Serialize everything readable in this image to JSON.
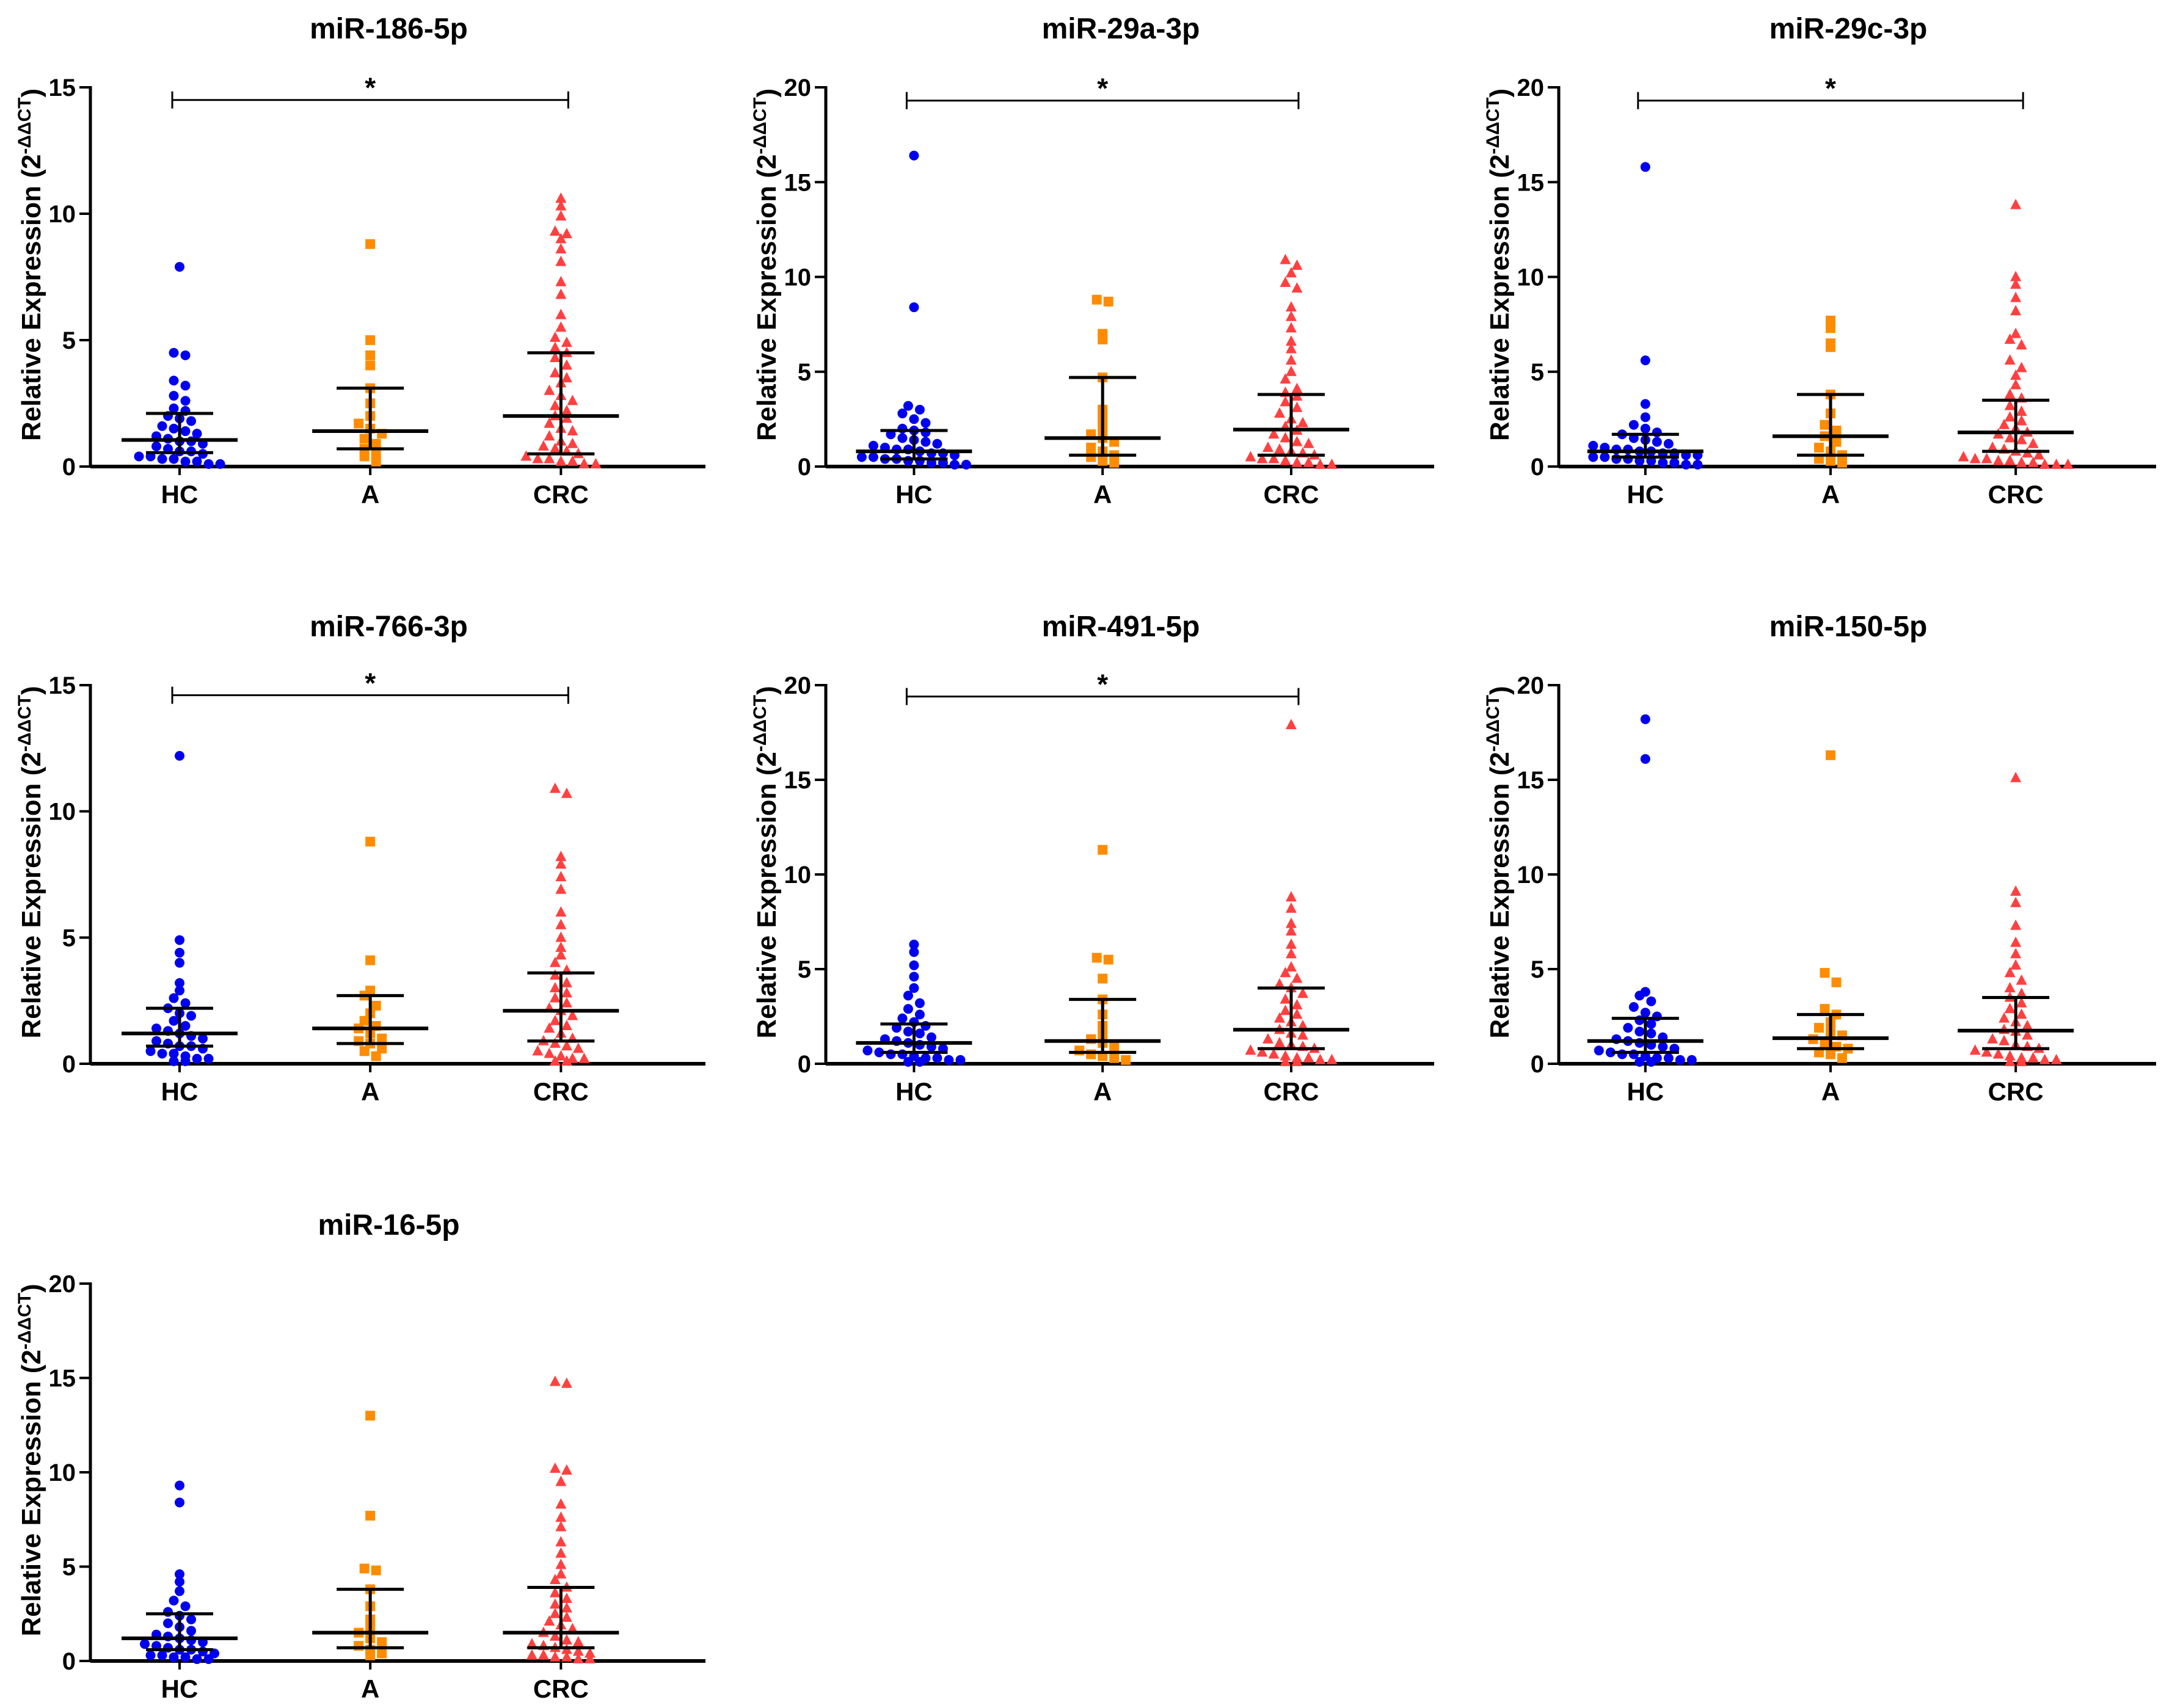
{
  "colors": {
    "HC": "#0000ee",
    "A": "#ff8c00",
    "CRC": "#ff4040",
    "axis": "#000000"
  },
  "marker_icons": {
    "HC": "circle-icon",
    "A": "square-icon",
    "CRC": "triangle-icon"
  },
  "ylabel_main": "Relative Expression (2",
  "ylabel_sup": "-ΔΔCT",
  "ylabel_close": ")",
  "chart_data": [
    {
      "type": "scatter",
      "title": "miR-186-5p",
      "categories": [
        "HC",
        "A",
        "CRC"
      ],
      "ylim": [
        0,
        15
      ],
      "yticks": [
        0,
        5,
        10,
        15
      ],
      "ylabel": "Relative Expression (2-ΔΔCT)",
      "significance": {
        "from": "HC",
        "to": "CRC",
        "y": 14.5,
        "label": "*"
      },
      "groups": [
        {
          "name": "HC",
          "median": 1.05,
          "q1": 0.55,
          "q3": 2.1,
          "points": [
            7.9,
            4.5,
            4.4,
            3.4,
            3.2,
            2.8,
            2.6,
            2.3,
            2.2,
            2.0,
            1.9,
            1.8,
            1.6,
            1.5,
            1.4,
            1.3,
            1.2,
            1.1,
            1.0,
            1.0,
            0.9,
            0.8,
            0.7,
            0.6,
            0.6,
            0.5,
            0.4,
            0.4,
            0.3,
            0.3,
            0.2,
            0.2,
            0.1,
            0.1
          ]
        },
        {
          "name": "A",
          "median": 1.4,
          "q1": 0.7,
          "q3": 3.1,
          "points": [
            8.8,
            5.0,
            4.4,
            4.0,
            3.1,
            2.5,
            2.0,
            1.7,
            1.5,
            1.3,
            1.1,
            0.9,
            0.7,
            0.5,
            0.4,
            0.2
          ]
        },
        {
          "name": "CRC",
          "median": 2.0,
          "q1": 0.5,
          "q3": 4.5,
          "points": [
            10.6,
            10.3,
            9.9,
            9.3,
            9.2,
            9.0,
            8.6,
            8.1,
            7.3,
            6.8,
            6.0,
            5.5,
            5.1,
            4.9,
            4.7,
            4.5,
            4.3,
            4.0,
            3.7,
            3.5,
            3.3,
            3.0,
            2.8,
            2.6,
            2.4,
            2.2,
            2.0,
            1.9,
            1.7,
            1.5,
            1.4,
            1.2,
            1.0,
            0.9,
            0.8,
            0.7,
            0.6,
            0.5,
            0.4,
            0.3,
            0.3,
            0.2,
            0.2,
            0.1,
            0.1
          ]
        }
      ]
    },
    {
      "type": "scatter",
      "title": "miR-29a-3p",
      "categories": [
        "HC",
        "A",
        "CRC"
      ],
      "ylim": [
        0,
        20
      ],
      "yticks": [
        0,
        5,
        10,
        15,
        20
      ],
      "ylabel": "Relative Expression (2-ΔΔCT)",
      "significance": {
        "from": "HC",
        "to": "CRC",
        "y": 19.3,
        "label": "*"
      },
      "groups": [
        {
          "name": "HC",
          "median": 0.8,
          "q1": 0.4,
          "q3": 1.9,
          "points": [
            16.4,
            8.4,
            3.2,
            3.0,
            2.8,
            2.5,
            2.3,
            2.0,
            1.9,
            1.8,
            1.7,
            1.5,
            1.4,
            1.3,
            1.2,
            1.1,
            1.0,
            0.9,
            0.9,
            0.8,
            0.7,
            0.7,
            0.6,
            0.5,
            0.5,
            0.4,
            0.4,
            0.3,
            0.3,
            0.2,
            0.2,
            0.1,
            0.1
          ]
        },
        {
          "name": "A",
          "median": 1.5,
          "q1": 0.6,
          "q3": 4.7,
          "points": [
            8.8,
            8.7,
            7.0,
            6.7,
            4.7,
            3.0,
            2.5,
            2.0,
            1.7,
            1.5,
            1.3,
            1.0,
            0.8,
            0.6,
            0.5,
            0.3,
            0.2
          ]
        },
        {
          "name": "CRC",
          "median": 1.95,
          "q1": 0.6,
          "q3": 3.8,
          "points": [
            10.9,
            10.6,
            10.2,
            9.7,
            9.4,
            8.4,
            7.9,
            7.3,
            6.6,
            6.2,
            5.6,
            5.0,
            4.6,
            4.1,
            3.9,
            3.7,
            3.4,
            3.1,
            2.8,
            2.5,
            2.3,
            2.1,
            1.9,
            1.7,
            1.5,
            1.3,
            1.2,
            1.0,
            0.9,
            0.8,
            0.7,
            0.6,
            0.5,
            0.4,
            0.4,
            0.3,
            0.2,
            0.2,
            0.1,
            0.1
          ]
        }
      ]
    },
    {
      "type": "scatter",
      "title": "miR-29c-3p",
      "categories": [
        "HC",
        "A",
        "CRC"
      ],
      "ylim": [
        0,
        20
      ],
      "yticks": [
        0,
        5,
        10,
        15,
        20
      ],
      "ylabel": "Relative Expression (2-ΔΔCT)",
      "significance": {
        "from": "HC",
        "to": "CRC",
        "y": 19.3,
        "label": "*"
      },
      "groups": [
        {
          "name": "HC",
          "median": 0.8,
          "q1": 0.5,
          "q3": 1.7,
          "points": [
            15.8,
            5.6,
            3.3,
            2.6,
            2.2,
            2.0,
            1.8,
            1.7,
            1.5,
            1.4,
            1.3,
            1.2,
            1.1,
            1.0,
            0.9,
            0.9,
            0.8,
            0.8,
            0.7,
            0.7,
            0.6,
            0.6,
            0.5,
            0.5,
            0.4,
            0.4,
            0.3,
            0.3,
            0.2,
            0.2,
            0.1,
            0.1
          ]
        },
        {
          "name": "A",
          "median": 1.6,
          "q1": 0.6,
          "q3": 3.8,
          "points": [
            7.7,
            7.3,
            6.5,
            6.3,
            3.8,
            2.8,
            2.2,
            1.9,
            1.6,
            1.3,
            1.0,
            0.8,
            0.6,
            0.4,
            0.3,
            0.2
          ]
        },
        {
          "name": "CRC",
          "median": 1.8,
          "q1": 0.8,
          "q3": 3.5,
          "points": [
            13.8,
            10.0,
            9.6,
            8.9,
            8.2,
            7.0,
            6.7,
            6.4,
            5.6,
            5.2,
            4.8,
            4.3,
            3.8,
            3.6,
            3.2,
            2.9,
            2.6,
            2.4,
            2.2,
            2.0,
            1.8,
            1.7,
            1.5,
            1.4,
            1.2,
            1.0,
            0.9,
            0.8,
            0.7,
            0.6,
            0.5,
            0.4,
            0.4,
            0.3,
            0.3,
            0.2,
            0.2,
            0.1,
            0.1,
            0.1
          ]
        }
      ]
    },
    {
      "type": "scatter",
      "title": "miR-766-3p",
      "categories": [
        "HC",
        "A",
        "CRC"
      ],
      "ylim": [
        0,
        15
      ],
      "yticks": [
        0,
        5,
        10,
        15
      ],
      "ylabel": "Relative Expression (2-ΔΔCT)",
      "significance": {
        "from": "HC",
        "to": "CRC",
        "y": 14.6,
        "label": "*"
      },
      "groups": [
        {
          "name": "HC",
          "median": 1.2,
          "q1": 0.7,
          "q3": 2.2,
          "points": [
            12.2,
            4.9,
            4.4,
            4.0,
            3.2,
            2.9,
            2.6,
            2.4,
            2.2,
            2.0,
            1.9,
            1.7,
            1.5,
            1.4,
            1.3,
            1.2,
            1.1,
            1.0,
            0.9,
            0.8,
            0.7,
            0.7,
            0.6,
            0.5,
            0.4,
            0.4,
            0.3,
            0.2,
            0.2,
            0.1,
            0.1
          ]
        },
        {
          "name": "A",
          "median": 1.4,
          "q1": 0.8,
          "q3": 2.7,
          "points": [
            8.8,
            4.1,
            2.9,
            2.7,
            2.3,
            2.0,
            1.7,
            1.5,
            1.4,
            1.2,
            1.0,
            0.9,
            0.8,
            0.6,
            0.5,
            0.3
          ]
        },
        {
          "name": "CRC",
          "median": 2.1,
          "q1": 0.9,
          "q3": 3.6,
          "points": [
            10.9,
            10.7,
            8.2,
            7.9,
            7.4,
            6.9,
            6.0,
            5.5,
            5.0,
            4.6,
            4.3,
            4.0,
            3.7,
            3.5,
            3.2,
            3.0,
            2.8,
            2.6,
            2.4,
            2.2,
            2.1,
            1.9,
            1.7,
            1.5,
            1.4,
            1.2,
            1.0,
            0.9,
            0.8,
            0.7,
            0.6,
            0.5,
            0.4,
            0.3,
            0.2,
            0.2,
            0.1,
            0.1
          ]
        }
      ]
    },
    {
      "type": "scatter",
      "title": "miR-491-5p",
      "categories": [
        "HC",
        "A",
        "CRC"
      ],
      "ylim": [
        0,
        20
      ],
      "yticks": [
        0,
        5,
        10,
        15,
        20
      ],
      "ylabel": "Relative Expression (2-ΔΔCT)",
      "significance": {
        "from": "HC",
        "to": "CRC",
        "y": 19.4,
        "label": "*"
      },
      "groups": [
        {
          "name": "HC",
          "median": 1.1,
          "q1": 0.6,
          "q3": 2.1,
          "points": [
            6.3,
            5.9,
            5.2,
            4.6,
            4.0,
            3.6,
            3.2,
            2.9,
            2.6,
            2.4,
            2.2,
            2.0,
            1.9,
            1.7,
            1.6,
            1.4,
            1.3,
            1.2,
            1.1,
            1.0,
            0.9,
            0.8,
            0.7,
            0.6,
            0.5,
            0.5,
            0.4,
            0.3,
            0.3,
            0.2,
            0.2,
            0.1,
            0.1
          ]
        },
        {
          "name": "A",
          "median": 1.2,
          "q1": 0.6,
          "q3": 3.4,
          "points": [
            11.3,
            5.6,
            5.5,
            4.5,
            3.4,
            2.6,
            2.0,
            1.6,
            1.3,
            1.1,
            0.9,
            0.7,
            0.5,
            0.4,
            0.3,
            0.2
          ]
        },
        {
          "name": "CRC",
          "median": 1.8,
          "q1": 0.8,
          "q3": 4.0,
          "points": [
            17.9,
            8.8,
            8.2,
            7.4,
            7.0,
            6.3,
            5.8,
            5.1,
            4.8,
            4.5,
            4.2,
            4.0,
            3.7,
            3.4,
            3.1,
            2.8,
            2.6,
            2.4,
            2.2,
            2.0,
            1.8,
            1.6,
            1.5,
            1.3,
            1.1,
            1.0,
            0.9,
            0.8,
            0.7,
            0.6,
            0.5,
            0.4,
            0.3,
            0.3,
            0.2,
            0.2,
            0.1,
            0.1
          ]
        }
      ]
    },
    {
      "type": "scatter",
      "title": "miR-150-5p",
      "categories": [
        "HC",
        "A",
        "CRC"
      ],
      "ylim": [
        0,
        20
      ],
      "yticks": [
        0,
        5,
        10,
        15,
        20
      ],
      "ylabel": "Relative Expression (2-ΔΔCT)",
      "significance": null,
      "groups": [
        {
          "name": "HC",
          "median": 1.2,
          "q1": 0.6,
          "q3": 2.4,
          "points": [
            18.2,
            16.1,
            3.8,
            3.6,
            3.3,
            3.0,
            2.7,
            2.5,
            2.3,
            2.1,
            1.9,
            1.7,
            1.6,
            1.4,
            1.3,
            1.2,
            1.1,
            1.0,
            0.9,
            0.8,
            0.7,
            0.6,
            0.5,
            0.5,
            0.4,
            0.3,
            0.3,
            0.2,
            0.2,
            0.1,
            0.1
          ]
        },
        {
          "name": "A",
          "median": 1.35,
          "q1": 0.8,
          "q3": 2.6,
          "points": [
            16.3,
            4.8,
            4.3,
            2.9,
            2.6,
            2.2,
            1.9,
            1.7,
            1.5,
            1.3,
            1.1,
            0.9,
            0.8,
            0.6,
            0.5,
            0.3
          ]
        },
        {
          "name": "CRC",
          "median": 1.75,
          "q1": 0.8,
          "q3": 3.5,
          "points": [
            15.1,
            9.1,
            8.5,
            7.3,
            6.4,
            5.8,
            5.2,
            4.8,
            4.4,
            4.0,
            3.7,
            3.5,
            3.2,
            2.9,
            2.6,
            2.4,
            2.2,
            2.0,
            1.8,
            1.7,
            1.5,
            1.3,
            1.2,
            1.0,
            0.9,
            0.8,
            0.7,
            0.6,
            0.5,
            0.4,
            0.3,
            0.3,
            0.2,
            0.2,
            0.1,
            0.1
          ]
        }
      ]
    },
    {
      "type": "scatter",
      "title": "miR-16-5p",
      "categories": [
        "HC",
        "A",
        "CRC"
      ],
      "ylim": [
        0,
        20
      ],
      "yticks": [
        0,
        5,
        10,
        15,
        20
      ],
      "ylabel": "Relative Expression (2-ΔΔCT)",
      "significance": null,
      "groups": [
        {
          "name": "HC",
          "median": 1.2,
          "q1": 0.6,
          "q3": 2.5,
          "points": [
            9.3,
            8.4,
            4.6,
            4.2,
            3.7,
            3.2,
            2.9,
            2.6,
            2.4,
            2.2,
            2.0,
            1.8,
            1.6,
            1.4,
            1.3,
            1.2,
            1.1,
            1.0,
            0.9,
            0.8,
            0.7,
            0.6,
            0.6,
            0.5,
            0.4,
            0.3,
            0.3,
            0.2,
            0.2,
            0.1,
            0.1
          ]
        },
        {
          "name": "A",
          "median": 1.5,
          "q1": 0.7,
          "q3": 3.8,
          "points": [
            13.0,
            7.7,
            4.9,
            4.8,
            3.8,
            2.9,
            2.2,
            1.8,
            1.5,
            1.2,
            1.0,
            0.8,
            0.6,
            0.4,
            0.3
          ]
        },
        {
          "name": "CRC",
          "median": 1.5,
          "q1": 0.7,
          "q3": 3.9,
          "points": [
            14.8,
            14.7,
            10.2,
            10.1,
            9.5,
            8.3,
            7.6,
            7.1,
            6.3,
            5.7,
            5.1,
            4.6,
            4.3,
            3.9,
            3.6,
            3.3,
            3.0,
            2.8,
            2.5,
            2.3,
            2.1,
            1.9,
            1.7,
            1.5,
            1.3,
            1.1,
            1.0,
            0.9,
            0.8,
            0.7,
            0.6,
            0.5,
            0.4,
            0.3,
            0.3,
            0.2,
            0.2,
            0.1,
            0.1
          ]
        }
      ]
    }
  ]
}
